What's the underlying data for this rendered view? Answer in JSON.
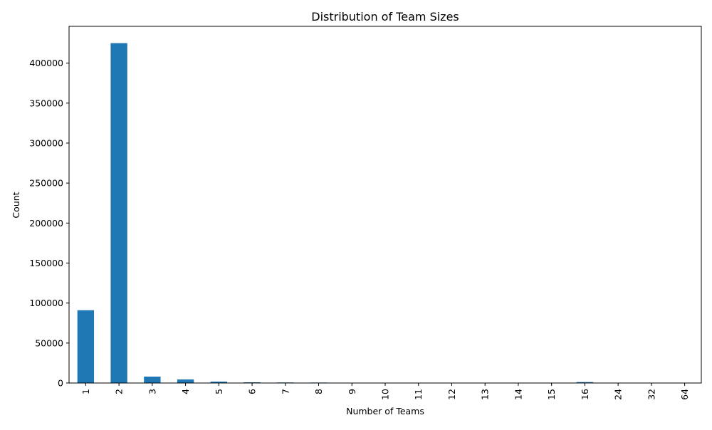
{
  "chart_data": {
    "type": "bar",
    "title": "Distribution of Team Sizes",
    "xlabel": "Number of Teams",
    "ylabel": "Count",
    "categories": [
      "1",
      "2",
      "3",
      "4",
      "5",
      "6",
      "7",
      "8",
      "9",
      "10",
      "11",
      "12",
      "13",
      "14",
      "15",
      "16",
      "24",
      "32",
      "64"
    ],
    "values": [
      91000,
      425000,
      8000,
      4500,
      1800,
      900,
      700,
      600,
      80,
      60,
      40,
      30,
      20,
      15,
      10,
      1200,
      20,
      15,
      5
    ],
    "ylim": [
      0,
      446000
    ],
    "yticks": [
      0,
      50000,
      100000,
      150000,
      200000,
      250000,
      300000,
      350000,
      400000
    ],
    "ytick_labels": [
      "0",
      "50000",
      "100000",
      "150000",
      "200000",
      "250000",
      "300000",
      "350000",
      "400000"
    ],
    "bar_color": "#1f77b4",
    "grid": false,
    "legend": false
  }
}
